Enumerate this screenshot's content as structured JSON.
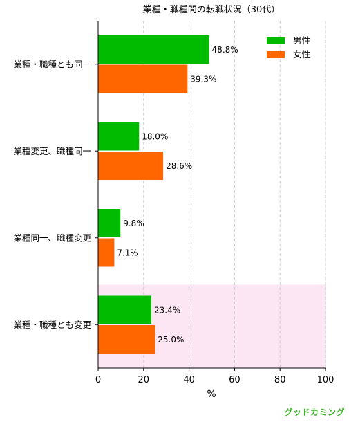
{
  "chart_data": {
    "type": "bar",
    "orientation": "horizontal",
    "title": "業種・職種間の転職状況（30代）",
    "xlabel": "%",
    "ylabel": "",
    "xlim": [
      0,
      100
    ],
    "xticks": [
      0,
      20,
      40,
      60,
      80,
      100
    ],
    "grid": true,
    "legend_position": "top-right",
    "categories": [
      "業種・職種とも同一",
      "業種変更、職種同一",
      "業種同一、職種変更",
      "業種・職種とも変更"
    ],
    "series": [
      {
        "name": "男性",
        "values": [
          48.8,
          18.0,
          9.8,
          23.4
        ],
        "labels": [
          "48.8%",
          "18.0%",
          "9.8%",
          "23.4%"
        ],
        "color": "#00bb00"
      },
      {
        "name": "女性",
        "values": [
          39.3,
          28.6,
          7.1,
          25.0
        ],
        "labels": [
          "39.3%",
          "28.6%",
          "7.1%",
          "25.0%"
        ],
        "color": "#ff6600"
      }
    ],
    "highlight_category": "業種・職種とも変更",
    "highlight_color": "#fde6f3"
  },
  "brand": {
    "text": "グッドカミング",
    "color": "#35b51e"
  }
}
